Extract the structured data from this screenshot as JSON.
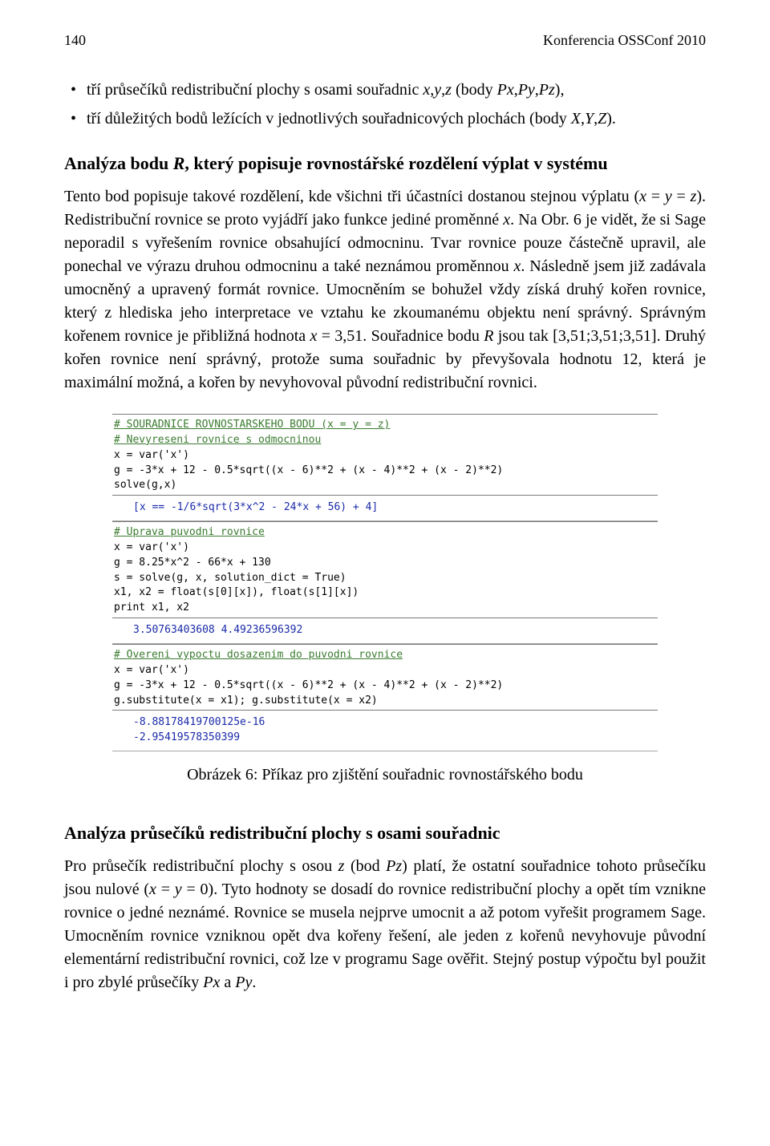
{
  "header": {
    "page_number": "140",
    "running_title": "Konferencia OSSConf 2010"
  },
  "bullets": [
    "tří průsečíků redistribuční plochy s osami souřadnic x, y, z (body Px, Py, Pz),",
    "tří důležitých bodů ležících v jednotlivých souřadnicových plochách (body X, Y, Z)."
  ],
  "section1": {
    "heading": "Analýza bodu R, který popisuje rovnostářské rozdělení výplat v systému",
    "paragraph": "Tento bod popisuje takové rozdělení, kde všichni tři účastníci dostanou stejnou výplatu (x = y = z). Redistribuční rovnice se proto vyjádří jako funkce jediné proměnné x. Na Obr. 6 je vidět, že si Sage neporadil s vyřešením rovnice obsahující odmocninu. Tvar rovnice pouze částečně upravil, ale ponechal ve výrazu druhou odmocninu a také neznámou proměnnou x. Následně jsem již zadávala umocněný a upravený formát rovnice. Umocněním se bohužel vždy získá druhý kořen rovnice, který z hlediska jeho interpretace ve vztahu ke zkoumanému objektu není správný. Správným kořenem rovnice je přibližná hodnota x = 3,51. Souřadnice bodu R jsou tak [3,51; 3,51; 3,51]. Druhý kořen rovnice není správný, protože suma souřadnic by převyšovala hodnotu 12, která je maximální možná, a kořen by nevyhovoval původní redistribuční rovnici."
  },
  "figure": {
    "cells": [
      {
        "kind": "input",
        "lines": [
          {
            "t": "comment",
            "s": "# SOURADNICE ROVNOSTARSKEHO BODU (x = y = z)"
          },
          {
            "t": "comment",
            "s": "# Nevyreseni rovnice s odmocninou"
          },
          {
            "t": "code",
            "s": "x = var('x')"
          },
          {
            "t": "code",
            "s": "g = -3*x + 12 - 0.5*sqrt((x - 6)**2 + (x - 4)**2 + (x - 2)**2)"
          },
          {
            "t": "code",
            "s": "solve(g,x)"
          }
        ]
      },
      {
        "kind": "output",
        "lines": [
          {
            "t": "out",
            "s": "[x == -1/6*sqrt(3*x^2 - 24*x + 56) + 4]"
          }
        ]
      },
      {
        "kind": "input",
        "lines": [
          {
            "t": "comment",
            "s": "# Uprava puvodni rovnice"
          },
          {
            "t": "code",
            "s": "x = var('x')"
          },
          {
            "t": "code",
            "s": "g = 8.25*x^2 - 66*x + 130"
          },
          {
            "t": "code",
            "s": "s = solve(g, x, solution_dict = True)"
          },
          {
            "t": "code",
            "s": "x1, x2 = float(s[0][x]), float(s[1][x])"
          },
          {
            "t": "code",
            "s": "print x1, x2"
          }
        ]
      },
      {
        "kind": "output",
        "lines": [
          {
            "t": "out",
            "s": "3.50763403608 4.49236596392"
          }
        ]
      },
      {
        "kind": "input",
        "lines": [
          {
            "t": "comment",
            "s": "# Overeni vypoctu dosazenim do puvodni rovnice"
          },
          {
            "t": "code",
            "s": "x = var('x')"
          },
          {
            "t": "code",
            "s": "g = -3*x + 12 - 0.5*sqrt((x - 6)**2 + (x - 4)**2 + (x - 2)**2)"
          },
          {
            "t": "code",
            "s": "g.substitute(x = x1); g.substitute(x = x2)"
          }
        ]
      },
      {
        "kind": "output",
        "lines": [
          {
            "t": "out",
            "s": "-8.88178419700125e-16"
          },
          {
            "t": "out",
            "s": "-2.95419578350399"
          }
        ]
      }
    ],
    "caption": "Obrázek 6: Příkaz pro zjištění souřadnic rovnostářského bodu"
  },
  "section2": {
    "heading": "Analýza průsečíků redistribuční plochy s osami souřadnic",
    "paragraph": "Pro průsečík redistribuční plochy s osou z (bod Pz) platí, že ostatní souřadnice tohoto průsečíku jsou nulové (x = y = 0). Tyto hodnoty se dosadí do rovnice redistribuční plochy a opět tím vznikne rovnice o jedné neznámé. Rovnice se musela nejprve umocnit a až potom vyřešit programem Sage. Umocněním rovnice vzniknou opět dva kořeny řešení, ale jeden z kořenů nevyhovuje původní elementární redistribuční rovnici, což lze v programu Sage ověřit. Stejný postup výpočtu byl použit i pro zbylé průsečíky Px a Py."
  }
}
